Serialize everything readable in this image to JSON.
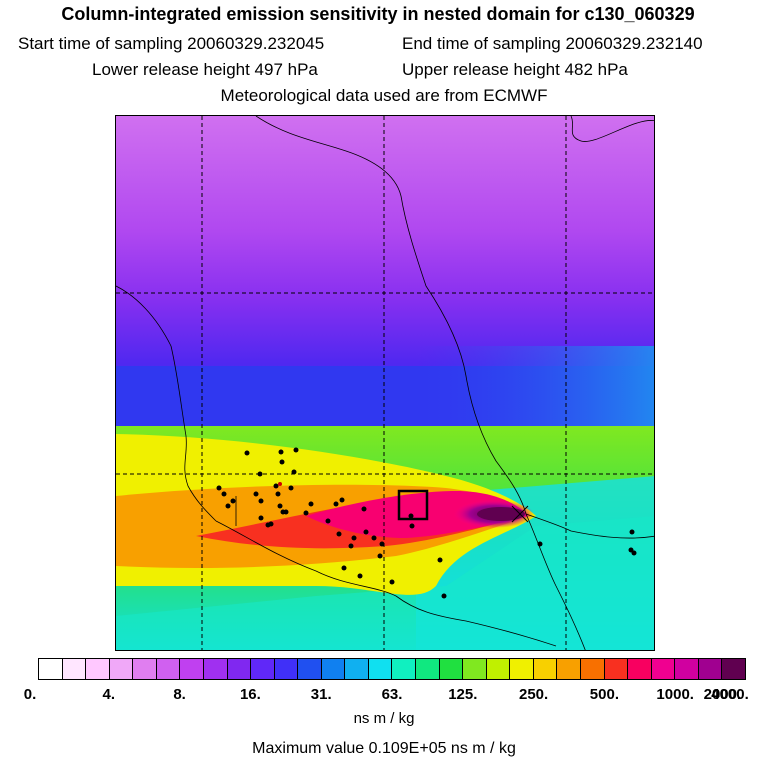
{
  "titles": {
    "main": "Column-integrated emission sensitivity in nested domain for c130_060329",
    "start_label": "Start time of sampling 20060329.232045",
    "end_label": "End time of sampling 20060329.232140",
    "lower_label": "Lower release height  497 hPa",
    "upper_label": "Upper release height  482 hPa",
    "met_label": "Meteorological data used are from ECMWF"
  },
  "colorbar": {
    "colors": [
      "#ffffff",
      "#ffe6ff",
      "#ffc8ff",
      "#f0a8f8",
      "#e07ef0",
      "#d060f0",
      "#c040f0",
      "#a030f0",
      "#8028f0",
      "#6028f8",
      "#4030f8",
      "#2050f0",
      "#1080f0",
      "#10b0f0",
      "#10e0f0",
      "#10f0c0",
      "#10e880",
      "#20e040",
      "#80e820",
      "#c0f000",
      "#f0f000",
      "#f8d000",
      "#f8a000",
      "#f87000",
      "#f83020",
      "#f80060",
      "#f00090",
      "#d000a0",
      "#a00090",
      "#600050"
    ],
    "tick_labels": [
      "0.",
      "4.",
      "8.",
      "16.",
      "31.",
      "63.",
      "125.",
      "250.",
      "500.",
      "1000.",
      "2000.",
      "4000."
    ],
    "unit": "ns m / kg"
  },
  "max_value_label": "Maximum value  0.109E+05 ns m / kg",
  "map": {
    "receptor_box": {
      "note": "receptor marker"
    },
    "sites": 45
  }
}
